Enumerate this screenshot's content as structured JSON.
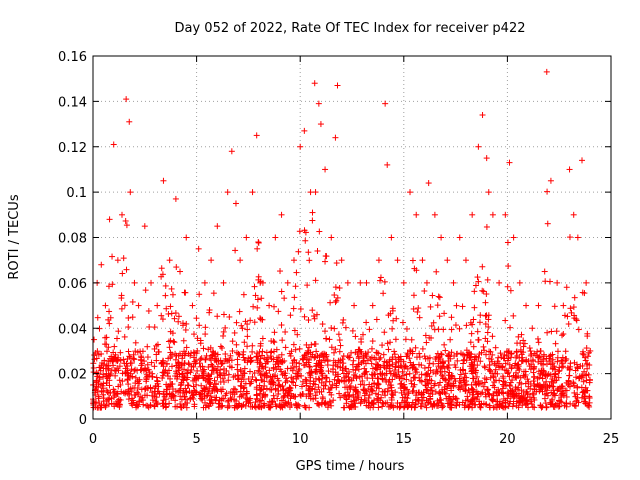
{
  "chart_data": {
    "type": "scatter",
    "title": "Day 052 of 2022, Rate Of TEC Index for receiver p422",
    "xlabel": "GPS time / hours",
    "ylabel": "ROTI / TECUs",
    "xlim": [
      0,
      25
    ],
    "ylim": [
      0,
      0.16
    ],
    "xticks": [
      0,
      5,
      10,
      15,
      20,
      25
    ],
    "xtick_labels": [
      "0",
      "5",
      "10",
      "15",
      "20",
      "25"
    ],
    "yticks": [
      0,
      0.02,
      0.04,
      0.06,
      0.08,
      0.1,
      0.12,
      0.14,
      0.16
    ],
    "ytick_labels": [
      "0",
      "0.02",
      "0.04",
      "0.06",
      "0.08",
      "0.1",
      "0.12",
      "0.14",
      "0.16"
    ],
    "grid": true,
    "marker": "+",
    "color": "#ff0000",
    "series": [
      {
        "name": "ROTI",
        "x": [
          0.05,
          0.2,
          0.4,
          0.6,
          0.8,
          1.0,
          1.2,
          1.4,
          1.6,
          1.75,
          1.8,
          2.0,
          2.2,
          2.5,
          2.8,
          3.1,
          3.4,
          3.7,
          4.0,
          4.2,
          4.5,
          4.8,
          5.1,
          5.4,
          5.7,
          6.0,
          6.3,
          6.5,
          6.7,
          6.9,
          7.1,
          7.4,
          7.7,
          7.9,
          8.2,
          8.5,
          8.8,
          9.1,
          9.4,
          9.7,
          10.0,
          10.2,
          10.5,
          10.7,
          10.9,
          11.0,
          11.2,
          11.5,
          11.7,
          11.8,
          12.0,
          12.3,
          12.6,
          12.9,
          13.2,
          13.5,
          13.8,
          14.1,
          14.2,
          14.4,
          14.7,
          15.0,
          15.3,
          15.6,
          15.9,
          16.2,
          16.5,
          16.8,
          17.1,
          17.4,
          17.7,
          18.0,
          18.3,
          18.6,
          18.8,
          19.0,
          19.1,
          19.3,
          19.6,
          19.9,
          20.1,
          20.3,
          20.6,
          20.9,
          21.2,
          21.5,
          21.8,
          21.9,
          22.1,
          22.4,
          22.7,
          23.0,
          23.2,
          23.4,
          23.6,
          23.8,
          24.0
        ],
        "values": [
          0.035,
          0.06,
          0.068,
          0.05,
          0.088,
          0.121,
          0.07,
          0.09,
          0.141,
          0.131,
          0.1,
          0.06,
          0.05,
          0.085,
          0.06,
          0.05,
          0.105,
          0.07,
          0.097,
          0.065,
          0.08,
          0.05,
          0.075,
          0.06,
          0.07,
          0.085,
          0.06,
          0.1,
          0.118,
          0.095,
          0.07,
          0.08,
          0.1,
          0.125,
          0.06,
          0.05,
          0.08,
          0.09,
          0.06,
          0.07,
          0.12,
          0.127,
          0.1,
          0.148,
          0.139,
          0.13,
          0.11,
          0.08,
          0.124,
          0.147,
          0.07,
          0.06,
          0.05,
          0.06,
          0.06,
          0.05,
          0.07,
          0.139,
          0.112,
          0.08,
          0.07,
          0.06,
          0.1,
          0.09,
          0.07,
          0.104,
          0.09,
          0.08,
          0.07,
          0.06,
          0.08,
          0.07,
          0.09,
          0.12,
          0.134,
          0.115,
          0.1,
          0.09,
          0.06,
          0.09,
          0.113,
          0.08,
          0.06,
          0.05,
          0.04,
          0.05,
          0.065,
          0.153,
          0.105,
          0.06,
          0.05,
          0.11,
          0.09,
          0.08,
          0.114,
          0.06,
          0.03
        ]
      }
    ],
    "baseline_band": [
      0.005,
      0.03
    ]
  }
}
